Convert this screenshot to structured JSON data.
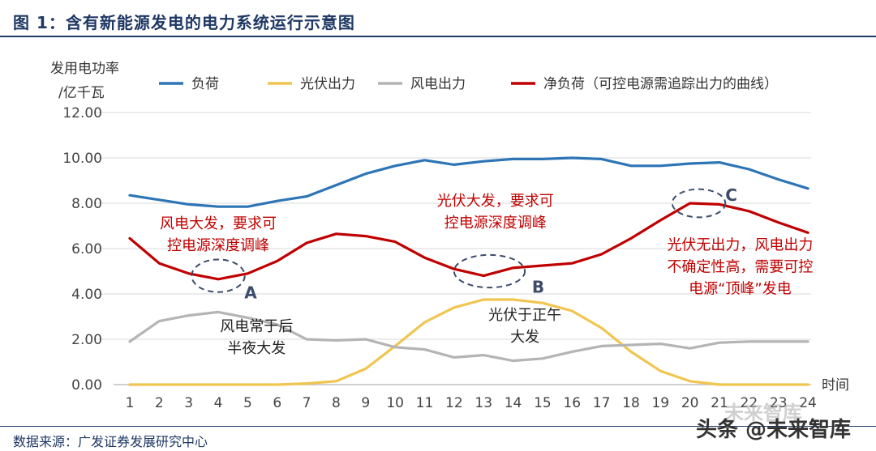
{
  "figure_title": "图 1：含有新能源发电的电力系统运行示意图",
  "source_note": "数据来源：广发证券发展研究中心",
  "watermark": "头条 @未来智库",
  "watermark_bg": "未来智库",
  "colors": {
    "load": "#2e75b6",
    "solar": "#f0c550",
    "wind": "#b4b4b4",
    "net_load": "#c00000",
    "annotation_red": "#c00000",
    "annotation_black": "#222222",
    "circle": "#3c4c6a",
    "title": "#1f3864"
  },
  "chart_data": {
    "type": "line",
    "ylabel_line1": "发用电功率",
    "ylabel_line2": "/亿千瓦",
    "xlabel": "时间",
    "ylim": [
      0,
      12
    ],
    "y_ticks": [
      "0.00",
      "2.00",
      "4.00",
      "6.00",
      "8.00",
      "10.00",
      "12.00"
    ],
    "y_tick_values": [
      0,
      2,
      4,
      6,
      8,
      10,
      12
    ],
    "categories": [
      "1",
      "2",
      "3",
      "4",
      "5",
      "6",
      "7",
      "8",
      "9",
      "10",
      "11",
      "12",
      "13",
      "14",
      "15",
      "16",
      "17",
      "18",
      "19",
      "20",
      "21",
      "22",
      "23",
      "24"
    ],
    "grid": true,
    "legend_position": "top",
    "series": [
      {
        "name": "负荷",
        "color_key": "load",
        "values": [
          8.35,
          8.15,
          7.95,
          7.85,
          7.85,
          8.1,
          8.3,
          8.8,
          9.3,
          9.65,
          9.9,
          9.7,
          9.85,
          9.95,
          9.95,
          10.0,
          9.95,
          9.65,
          9.65,
          9.75,
          9.8,
          9.5,
          9.05,
          8.65
        ]
      },
      {
        "name": "光伏出力",
        "color_key": "solar",
        "values": [
          0,
          0,
          0,
          0,
          0,
          0,
          0.05,
          0.15,
          0.7,
          1.7,
          2.75,
          3.4,
          3.75,
          3.75,
          3.6,
          3.25,
          2.5,
          1.45,
          0.6,
          0.15,
          0,
          0,
          0,
          0
        ]
      },
      {
        "name": "风电出力",
        "color_key": "wind",
        "values": [
          1.9,
          2.8,
          3.05,
          3.2,
          2.95,
          2.65,
          2.0,
          1.95,
          2.0,
          1.65,
          1.55,
          1.2,
          1.3,
          1.05,
          1.15,
          1.45,
          1.7,
          1.75,
          1.8,
          1.6,
          1.85,
          1.9,
          1.9,
          1.9
        ]
      },
      {
        "name": "净负荷（可控电源需追踪出力的曲线）",
        "color_key": "net_load",
        "values": [
          6.45,
          5.35,
          4.9,
          4.65,
          4.9,
          5.45,
          6.25,
          6.65,
          6.55,
          6.3,
          5.6,
          5.1,
          4.8,
          5.15,
          5.25,
          5.35,
          5.75,
          6.45,
          7.25,
          8.0,
          7.95,
          7.65,
          7.15,
          6.7
        ]
      }
    ],
    "annotations": [
      {
        "id": "ann-wind-big",
        "lines": [
          "风电大发，要求可",
          "控电源深度调峰"
        ],
        "color_key": "annotation_red",
        "x": 4,
        "y": 6.9
      },
      {
        "id": "ann-solar-big",
        "lines": [
          "光伏大发，要求可",
          "控电源深度调峰"
        ],
        "color_key": "annotation_red",
        "x": 13.4,
        "y": 7.9
      },
      {
        "id": "ann-peak",
        "lines": [
          "光伏无出力，风电出力",
          "不确定性高，需要可控",
          "电源“顶峰”发电"
        ],
        "color_key": "annotation_red",
        "x": 21.7,
        "y": 5.95
      },
      {
        "id": "ann-wind-night",
        "lines": [
          "风电常于后",
          "半夜大发"
        ],
        "color_key": "annotation_black",
        "x": 5.3,
        "y": 2.35
      },
      {
        "id": "ann-solar-noon",
        "lines": [
          "光伏于正午",
          "大发"
        ],
        "color_key": "annotation_black",
        "x": 14.4,
        "y": 2.85
      }
    ],
    "markers": [
      {
        "label": "A",
        "cx": 4.0,
        "cy": 4.8,
        "rx": 0.9,
        "ry": 0.72,
        "lx": 5.1,
        "ly": 4.05
      },
      {
        "label": "B",
        "cx": 13.2,
        "cy": 5.0,
        "rx": 1.2,
        "ry": 0.72,
        "lx": 14.85,
        "ly": 4.3
      },
      {
        "label": "C",
        "cx": 20.3,
        "cy": 8.0,
        "rx": 0.9,
        "ry": 0.62,
        "lx": 21.4,
        "ly": 8.35
      }
    ]
  }
}
